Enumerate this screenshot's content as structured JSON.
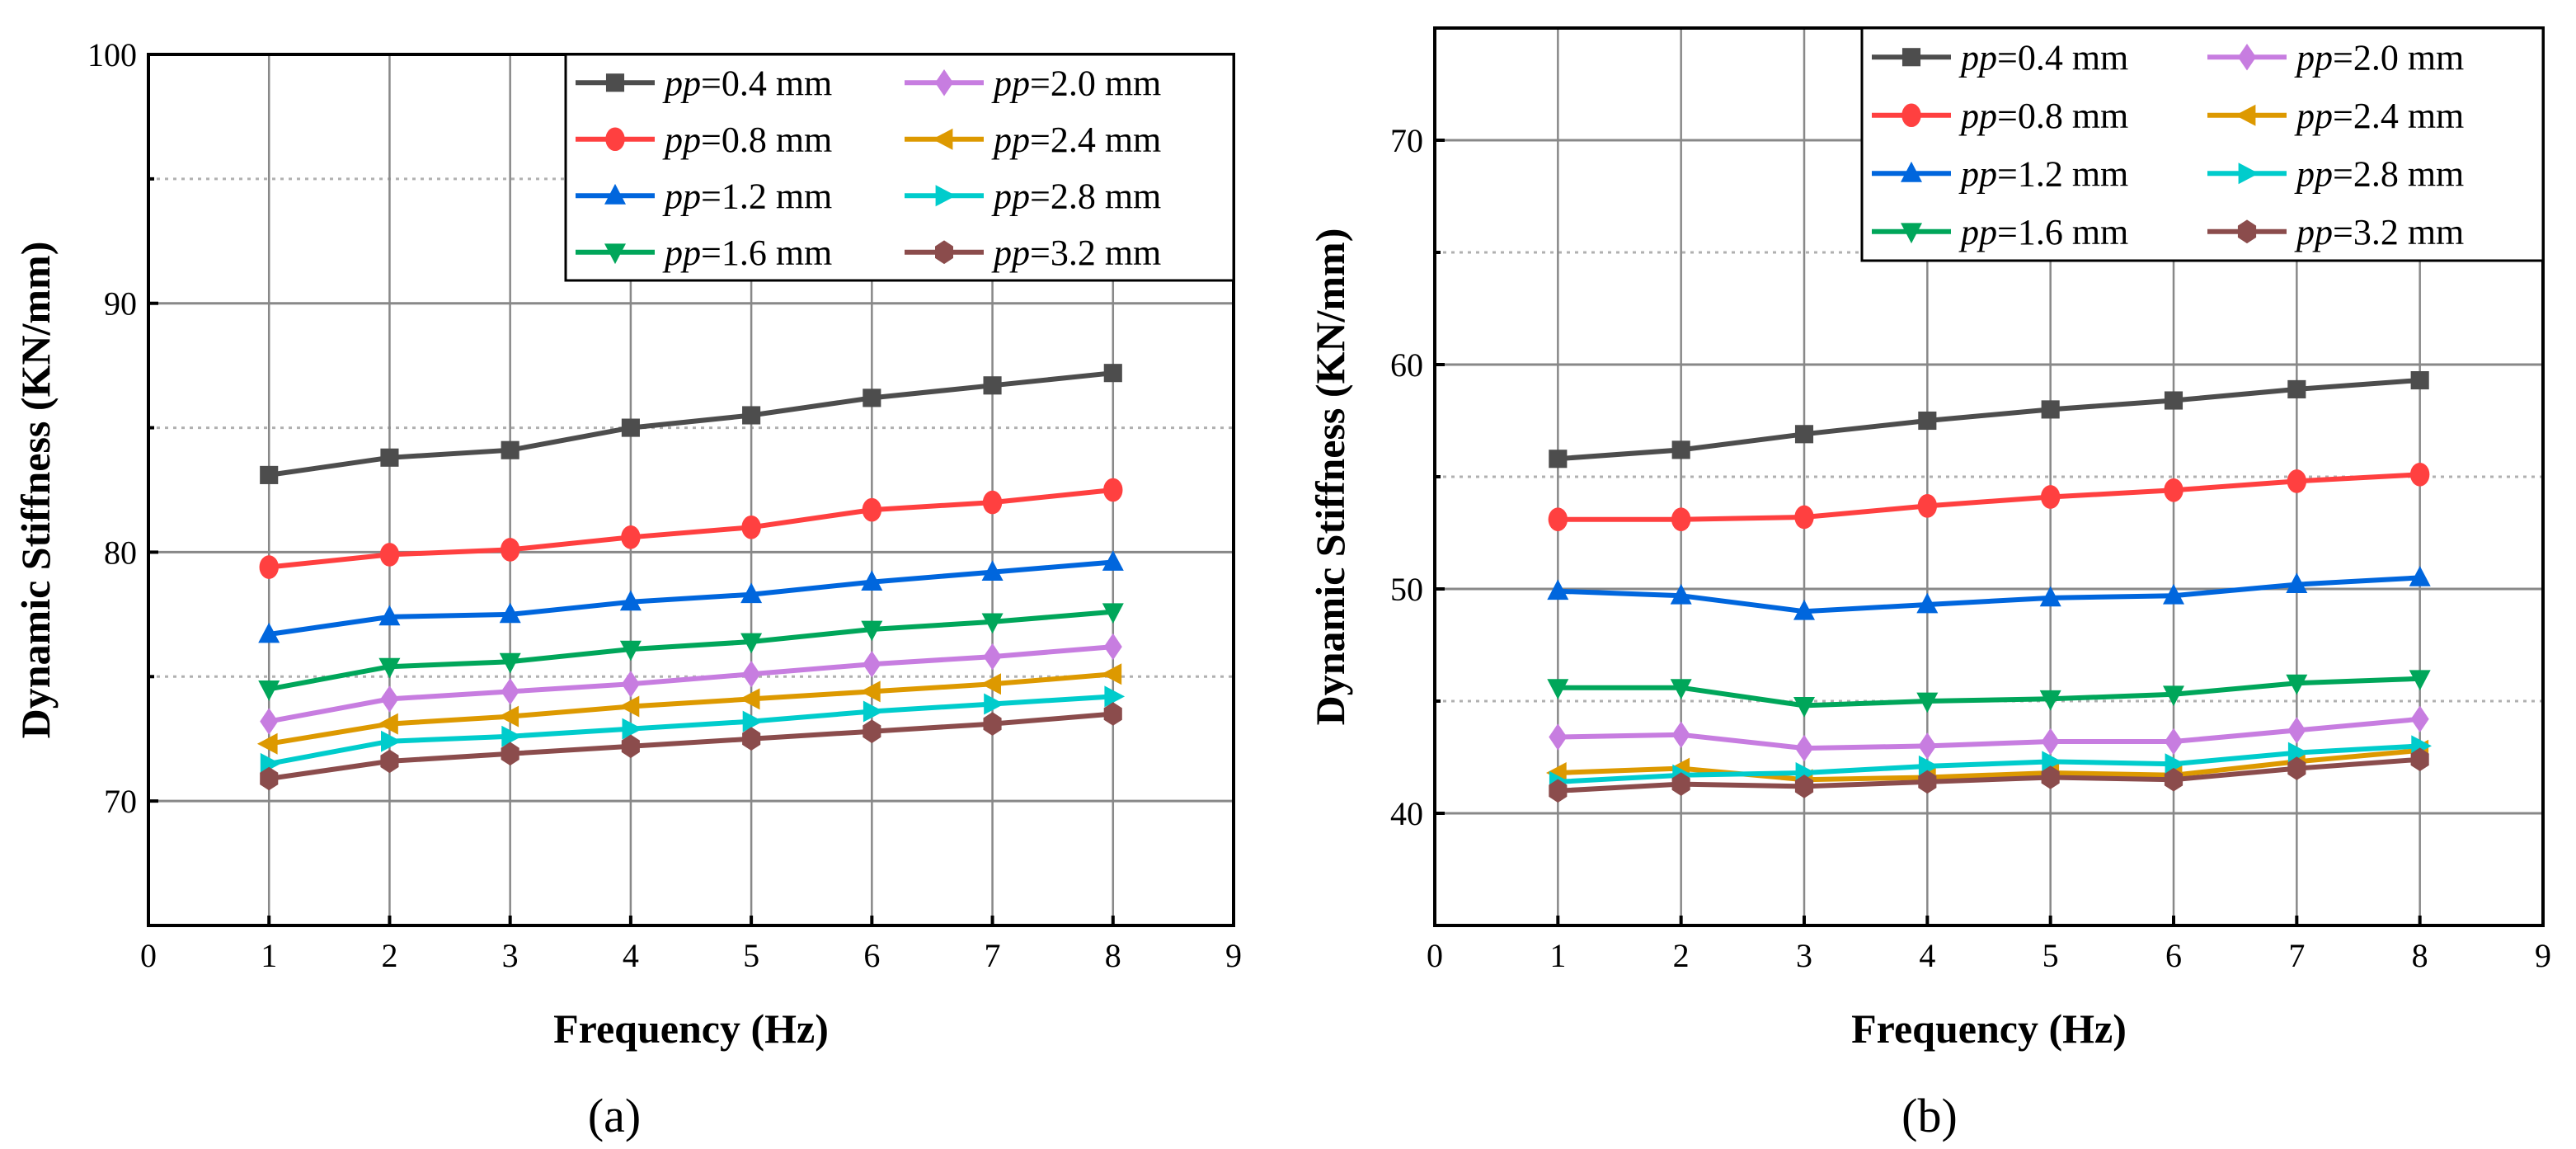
{
  "chart_data": [
    {
      "type": "line",
      "caption": "(a)",
      "title": "",
      "xlabel": "Frequency (Hz)",
      "ylabel": "Dynamic Stiffness (KN/mm)",
      "xlim": [
        0,
        9
      ],
      "ylim": [
        65,
        100
      ],
      "xticks": [
        0,
        1,
        2,
        3,
        4,
        5,
        6,
        7,
        8,
        9
      ],
      "yticks": [
        70,
        80,
        90,
        100
      ],
      "yminor": [
        75,
        85,
        95
      ],
      "grid": true,
      "legend_position": "top-right",
      "x": [
        1,
        2,
        3,
        4,
        5,
        6,
        7,
        8
      ],
      "series": [
        {
          "name": "=0.4 mm",
          "prefix": "pp",
          "marker": "square",
          "color": "#4d4d4d",
          "values": [
            83.1,
            83.8,
            84.1,
            85.0,
            85.5,
            86.2,
            86.7,
            87.2
          ]
        },
        {
          "name": "=0.8 mm",
          "prefix": "pp",
          "marker": "circle",
          "color": "#ff4040",
          "values": [
            79.4,
            79.9,
            80.1,
            80.6,
            81.0,
            81.7,
            82.0,
            82.5
          ]
        },
        {
          "name": "=1.2 mm",
          "prefix": "pp",
          "marker": "triangle-up",
          "color": "#0066dd",
          "values": [
            76.7,
            77.4,
            77.5,
            78.0,
            78.3,
            78.8,
            79.2,
            79.6
          ]
        },
        {
          "name": "=1.6 mm",
          "prefix": "pp",
          "marker": "triangle-down",
          "color": "#00a65a",
          "values": [
            74.5,
            75.4,
            75.6,
            76.1,
            76.4,
            76.9,
            77.2,
            77.6
          ]
        },
        {
          "name": "=2.0 mm",
          "prefix": "pp",
          "marker": "diamond",
          "color": "#c77de0",
          "values": [
            73.2,
            74.1,
            74.4,
            74.7,
            75.1,
            75.5,
            75.8,
            76.2
          ]
        },
        {
          "name": "=2.4 mm",
          "prefix": "pp",
          "marker": "triangle-left",
          "color": "#dd9900",
          "values": [
            72.3,
            73.1,
            73.4,
            73.8,
            74.1,
            74.4,
            74.7,
            75.1
          ]
        },
        {
          "name": "=2.8 mm",
          "prefix": "pp",
          "marker": "triangle-right",
          "color": "#00cccc",
          "values": [
            71.5,
            72.4,
            72.6,
            72.9,
            73.2,
            73.6,
            73.9,
            74.2
          ]
        },
        {
          "name": "=3.2 mm",
          "prefix": "pp",
          "marker": "hexagon",
          "color": "#8b4c4c",
          "values": [
            70.9,
            71.6,
            71.9,
            72.2,
            72.5,
            72.8,
            73.1,
            73.5
          ]
        }
      ]
    },
    {
      "type": "line",
      "caption": "(b)",
      "title": "",
      "xlabel": "Frequency (Hz)",
      "ylabel": "Dynamic Stiffness (KN/mm)",
      "xlim": [
        0,
        9
      ],
      "ylim": [
        35,
        75
      ],
      "xticks": [
        0,
        1,
        2,
        3,
        4,
        5,
        6,
        7,
        8,
        9
      ],
      "yticks": [
        40,
        50,
        60,
        70
      ],
      "yminor": [
        45,
        55,
        65
      ],
      "grid": true,
      "legend_position": "top-right",
      "x": [
        1,
        2,
        3,
        4,
        5,
        6,
        7,
        8
      ],
      "series": [
        {
          "name": "=0.4 mm",
          "prefix": "pp",
          "marker": "square",
          "color": "#4d4d4d",
          "values": [
            55.8,
            56.2,
            56.9,
            57.5,
            58.0,
            58.4,
            58.9,
            59.3
          ]
        },
        {
          "name": "=0.8 mm",
          "prefix": "pp",
          "marker": "circle",
          "color": "#ff4040",
          "values": [
            53.1,
            53.1,
            53.2,
            53.7,
            54.1,
            54.4,
            54.8,
            55.1
          ]
        },
        {
          "name": "=1.2 mm",
          "prefix": "pp",
          "marker": "triangle-up",
          "color": "#0066dd",
          "values": [
            49.9,
            49.7,
            49.0,
            49.3,
            49.6,
            49.7,
            50.2,
            50.5
          ]
        },
        {
          "name": "=1.6 mm",
          "prefix": "pp",
          "marker": "triangle-down",
          "color": "#00a65a",
          "values": [
            45.6,
            45.6,
            44.8,
            45.0,
            45.1,
            45.3,
            45.8,
            46.0
          ]
        },
        {
          "name": "=2.0 mm",
          "prefix": "pp",
          "marker": "diamond",
          "color": "#c77de0",
          "values": [
            43.4,
            43.5,
            42.9,
            43.0,
            43.2,
            43.2,
            43.7,
            44.2
          ]
        },
        {
          "name": "=2.4 mm",
          "prefix": "pp",
          "marker": "triangle-left",
          "color": "#dd9900",
          "values": [
            41.8,
            42.0,
            41.5,
            41.6,
            41.8,
            41.7,
            42.3,
            42.8
          ]
        },
        {
          "name": "=2.8 mm",
          "prefix": "pp",
          "marker": "triangle-right",
          "color": "#00cccc",
          "values": [
            41.4,
            41.7,
            41.8,
            42.1,
            42.3,
            42.2,
            42.7,
            43.0
          ]
        },
        {
          "name": "=3.2 mm",
          "prefix": "pp",
          "marker": "hexagon",
          "color": "#8b4c4c",
          "values": [
            41.0,
            41.3,
            41.2,
            41.4,
            41.6,
            41.5,
            42.0,
            42.4
          ]
        }
      ]
    }
  ]
}
